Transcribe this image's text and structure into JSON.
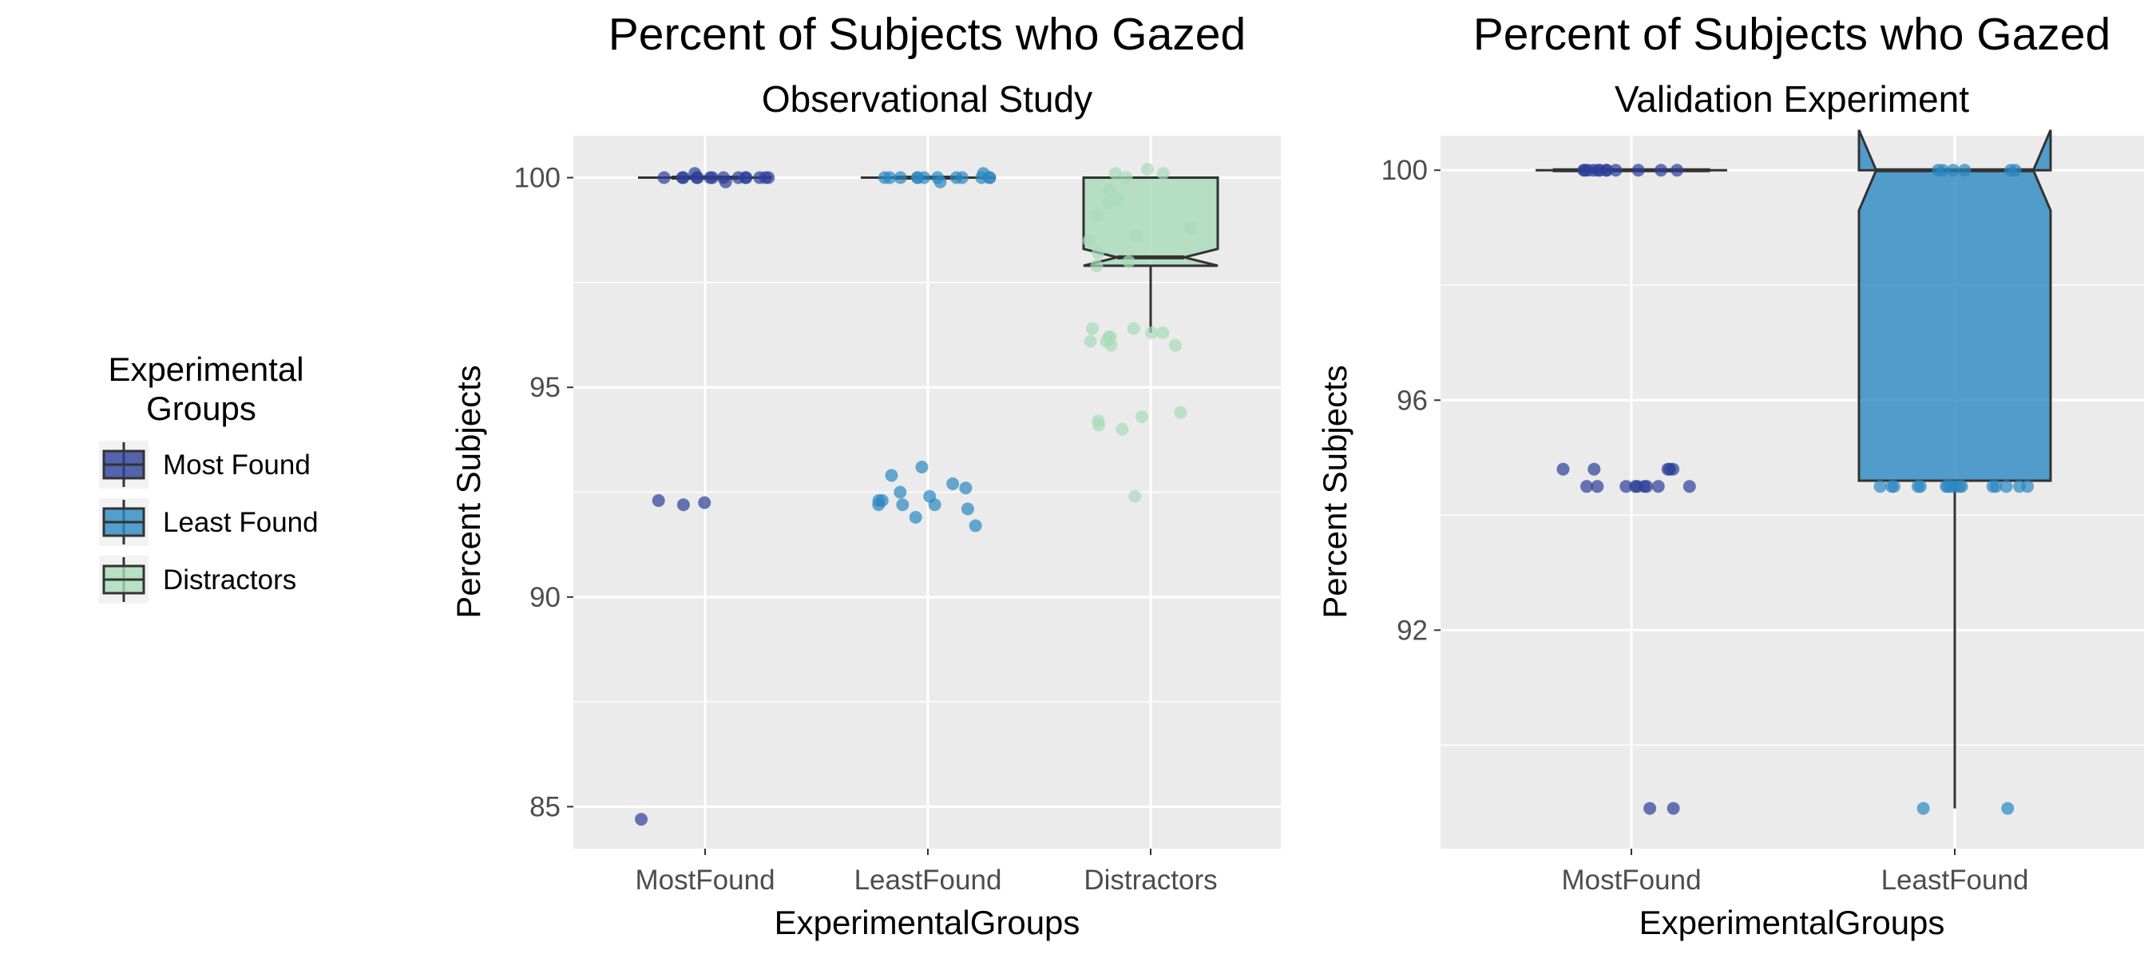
{
  "legend": {
    "title_line1": "Experimental",
    "title_line2": "Groups",
    "entries": [
      {
        "label": "Most Found",
        "color": "#2c3e99"
      },
      {
        "label": "Least Found",
        "color": "#2b88c2"
      },
      {
        "label": "Distractors",
        "color": "#a8dbb8"
      }
    ]
  },
  "chart_data": [
    {
      "type": "boxplot",
      "title": "Percent of Subjects who Gazed",
      "subtitle": "Observational Study",
      "xlabel": "ExperimentalGroups",
      "ylabel": "Percent Subjects",
      "ylim": [
        84,
        101
      ],
      "yticks": [
        85,
        90,
        95,
        100
      ],
      "notched": true,
      "grid": true,
      "categories": [
        "MostFound",
        "LeastFound",
        "Distractors"
      ],
      "boxes": [
        {
          "category": "MostFound",
          "q1": 100,
          "median": 100,
          "q3": 100,
          "whisker_low": 100,
          "whisker_high": 100,
          "notch_low": 100,
          "notch_high": 100
        },
        {
          "category": "LeastFound",
          "q1": 100,
          "median": 100,
          "q3": 100,
          "whisker_low": 100,
          "whisker_high": 100,
          "notch_low": 100,
          "notch_high": 100
        },
        {
          "category": "Distractors",
          "q1": 97.9,
          "median": 98.1,
          "q3": 100,
          "whisker_low": 96.3,
          "whisker_high": 100,
          "notch_low": 97.9,
          "notch_high": 98.3
        }
      ],
      "points": [
        {
          "category": "MostFound",
          "values": [
            100,
            100,
            100,
            100,
            100,
            100,
            100,
            100,
            100,
            100,
            100,
            100,
            100,
            100,
            99.9,
            100.1,
            92.3,
            92.2,
            92.25,
            84.7
          ]
        },
        {
          "category": "LeastFound",
          "values": [
            100,
            100,
            100,
            100,
            100,
            100,
            100,
            100,
            100,
            100,
            100,
            100,
            99.9,
            100.1,
            93.1,
            92.9,
            92.7,
            92.6,
            92.5,
            92.4,
            92.3,
            92.2,
            92.2,
            92.3,
            92.1,
            92.2,
            91.9,
            91.7
          ]
        },
        {
          "category": "Distractors",
          "values": [
            100.2,
            100.1,
            100,
            99.7,
            99.4,
            99.1,
            98.8,
            98.5,
            98.2,
            97.9,
            100.1,
            99.5,
            98.6,
            98.0,
            96.4,
            96.3,
            96.2,
            96.1,
            96.0,
            96.3,
            96.1,
            96.0,
            96.2,
            96.4,
            94.4,
            94.3,
            94.2,
            94.0,
            94.1,
            92.4
          ]
        }
      ]
    },
    {
      "type": "boxplot",
      "title": "Percent of Subjects who Gazed",
      "subtitle": "Validation Experiment",
      "xlabel": "ExperimentalGroups",
      "ylabel": "Percent Subjects",
      "ylim": [
        88.2,
        100.6
      ],
      "yticks": [
        92,
        96,
        100
      ],
      "notched": true,
      "grid": true,
      "categories": [
        "MostFound",
        "LeastFound"
      ],
      "boxes": [
        {
          "category": "MostFound",
          "q1": 100,
          "median": 100,
          "q3": 100,
          "whisker_low": 100,
          "whisker_high": 100,
          "notch_low": 100,
          "notch_high": 100
        },
        {
          "category": "LeastFound",
          "q1": 94.6,
          "median": 100,
          "q3": 100,
          "whisker_low": 88.9,
          "whisker_high": 100,
          "notch_low": 99.3,
          "notch_high": 100.7
        }
      ],
      "points": [
        {
          "category": "MostFound",
          "values": [
            100,
            100,
            100,
            100,
            100,
            100,
            100,
            100,
            100,
            100,
            100,
            100,
            94.8,
            94.8,
            94.8,
            94.8,
            94.8,
            94.5,
            94.5,
            94.5,
            94.5,
            94.5,
            94.5,
            94.5,
            94.5,
            94.5,
            88.9,
            88.9
          ]
        },
        {
          "category": "LeastFound",
          "values": [
            100,
            100,
            100,
            100,
            100,
            100,
            94.5,
            94.5,
            94.5,
            94.5,
            94.5,
            94.5,
            94.5,
            94.5,
            94.5,
            94.5,
            94.5,
            94.5,
            94.5,
            94.5,
            94.5,
            94.5,
            88.9,
            88.9
          ]
        }
      ]
    }
  ]
}
